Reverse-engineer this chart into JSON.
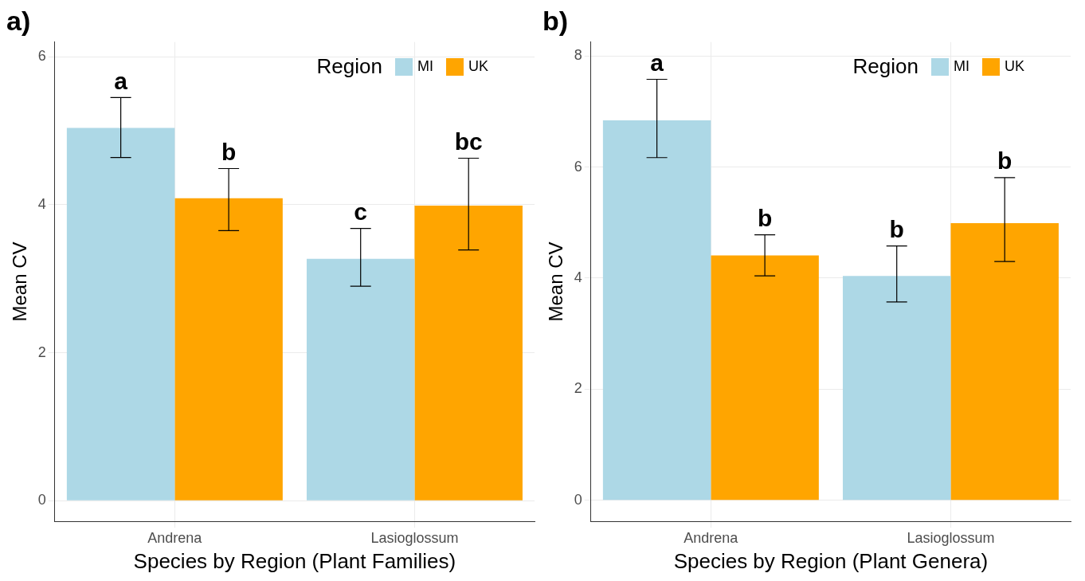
{
  "chart_data": [
    {
      "type": "bar",
      "title": "a)",
      "xlabel": "Species by Region (Plant Families)",
      "ylabel": "Mean CV",
      "legend_title": "Region",
      "categories": [
        "Andrena",
        "Lasioglossum"
      ],
      "series": [
        {
          "name": "MI",
          "color": "#add8e6",
          "values": [
            5.04,
            3.27
          ],
          "errors": [
            [
              4.64,
              5.45
            ],
            [
              2.9,
              3.68
            ]
          ],
          "value_labels": [
            "a",
            "c"
          ]
        },
        {
          "name": "UK",
          "color": "#ffa500",
          "values": [
            4.09,
            3.99
          ],
          "errors": [
            [
              3.65,
              4.49
            ],
            [
              3.39,
              4.63
            ]
          ],
          "value_labels": [
            "b",
            "bc"
          ]
        }
      ],
      "ylim": [
        -0.28,
        6.2
      ],
      "yticks": [
        0,
        2,
        4,
        6
      ],
      "grid": true,
      "legend": "top right"
    },
    {
      "type": "bar",
      "title": "b)",
      "xlabel": "Species by Region (Plant Genera)",
      "ylabel": "Mean CV",
      "legend_title": "Region",
      "categories": [
        "Andrena",
        "Lasioglossum"
      ],
      "series": [
        {
          "name": "MI",
          "color": "#add8e6",
          "values": [
            6.84,
            4.04
          ],
          "errors": [
            [
              6.17,
              7.58
            ],
            [
              3.57,
              4.58
            ]
          ],
          "value_labels": [
            "a",
            "b"
          ]
        },
        {
          "name": "UK",
          "color": "#ffa500",
          "values": [
            4.41,
            4.99
          ],
          "errors": [
            [
              4.04,
              4.78
            ],
            [
              4.3,
              5.81
            ]
          ],
          "value_labels": [
            "b",
            "b"
          ]
        }
      ],
      "ylim": [
        -0.38,
        8.25
      ],
      "yticks": [
        0,
        2,
        4,
        6,
        8
      ],
      "grid": true,
      "legend": "top right"
    }
  ]
}
